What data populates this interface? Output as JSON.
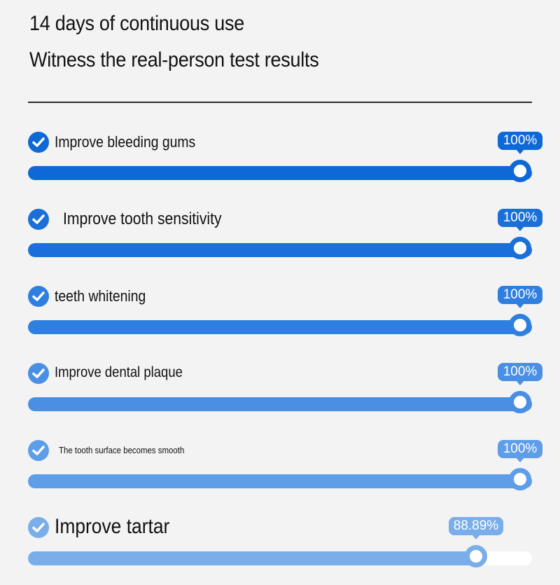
{
  "header": {
    "title": "14 days of continuous use",
    "subtitle": "Witness the real-person test results"
  },
  "results": [
    {
      "label": "Improve bleeding gums",
      "percent_text": "100%",
      "value": 100,
      "color": "#0e68d6",
      "icon": "check-circle-icon"
    },
    {
      "label": "Improve tooth sensitivity",
      "percent_text": "100%",
      "value": 100,
      "color": "#1a6fd8",
      "icon": "check-circle-icon"
    },
    {
      "label": "teeth whitening",
      "percent_text": "100%",
      "value": 100,
      "color": "#2e7fe0",
      "icon": "check-circle-icon"
    },
    {
      "label": "Improve dental plaque",
      "percent_text": "100%",
      "value": 100,
      "color": "#4a8fe3",
      "icon": "check-circle-icon"
    },
    {
      "label": "The tooth surface becomes smooth",
      "percent_text": "100%",
      "value": 100,
      "color": "#5e9de8",
      "icon": "check-circle-icon"
    },
    {
      "label": "Improve tartar",
      "percent_text": "88.89%",
      "value": 88.89,
      "color": "#7aaeea",
      "icon": "check-circle-icon"
    }
  ]
}
